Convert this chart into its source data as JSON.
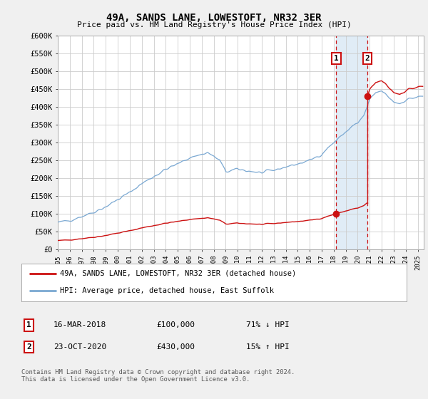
{
  "title": "49A, SANDS LANE, LOWESTOFT, NR32 3ER",
  "subtitle": "Price paid vs. HM Land Registry's House Price Index (HPI)",
  "ylabel_ticks": [
    "£0",
    "£50K",
    "£100K",
    "£150K",
    "£200K",
    "£250K",
    "£300K",
    "£350K",
    "£400K",
    "£450K",
    "£500K",
    "£550K",
    "£600K"
  ],
  "ylim": [
    0,
    600000
  ],
  "xlim_start": 1995.0,
  "xlim_end": 2025.5,
  "hpi_color": "#7aa8d2",
  "price_color": "#cc1111",
  "vline_color": "#cc1111",
  "shade_color": "#cce0f0",
  "event1_x": 2018.21,
  "event2_x": 2020.81,
  "event1_price": 100000,
  "event2_price": 430000,
  "legend_line1": "49A, SANDS LANE, LOWESTOFT, NR32 3ER (detached house)",
  "legend_line2": "HPI: Average price, detached house, East Suffolk",
  "table_row1_num": "1",
  "table_row1_date": "16-MAR-2018",
  "table_row1_price": "£100,000",
  "table_row1_hpi": "71% ↓ HPI",
  "table_row2_num": "2",
  "table_row2_date": "23-OCT-2020",
  "table_row2_price": "£430,000",
  "table_row2_hpi": "15% ↑ HPI",
  "footer": "Contains HM Land Registry data © Crown copyright and database right 2024.\nThis data is licensed under the Open Government Licence v3.0.",
  "bg_color": "#f0f0f0",
  "plot_bg_color": "#ffffff",
  "grid_color": "#cccccc"
}
